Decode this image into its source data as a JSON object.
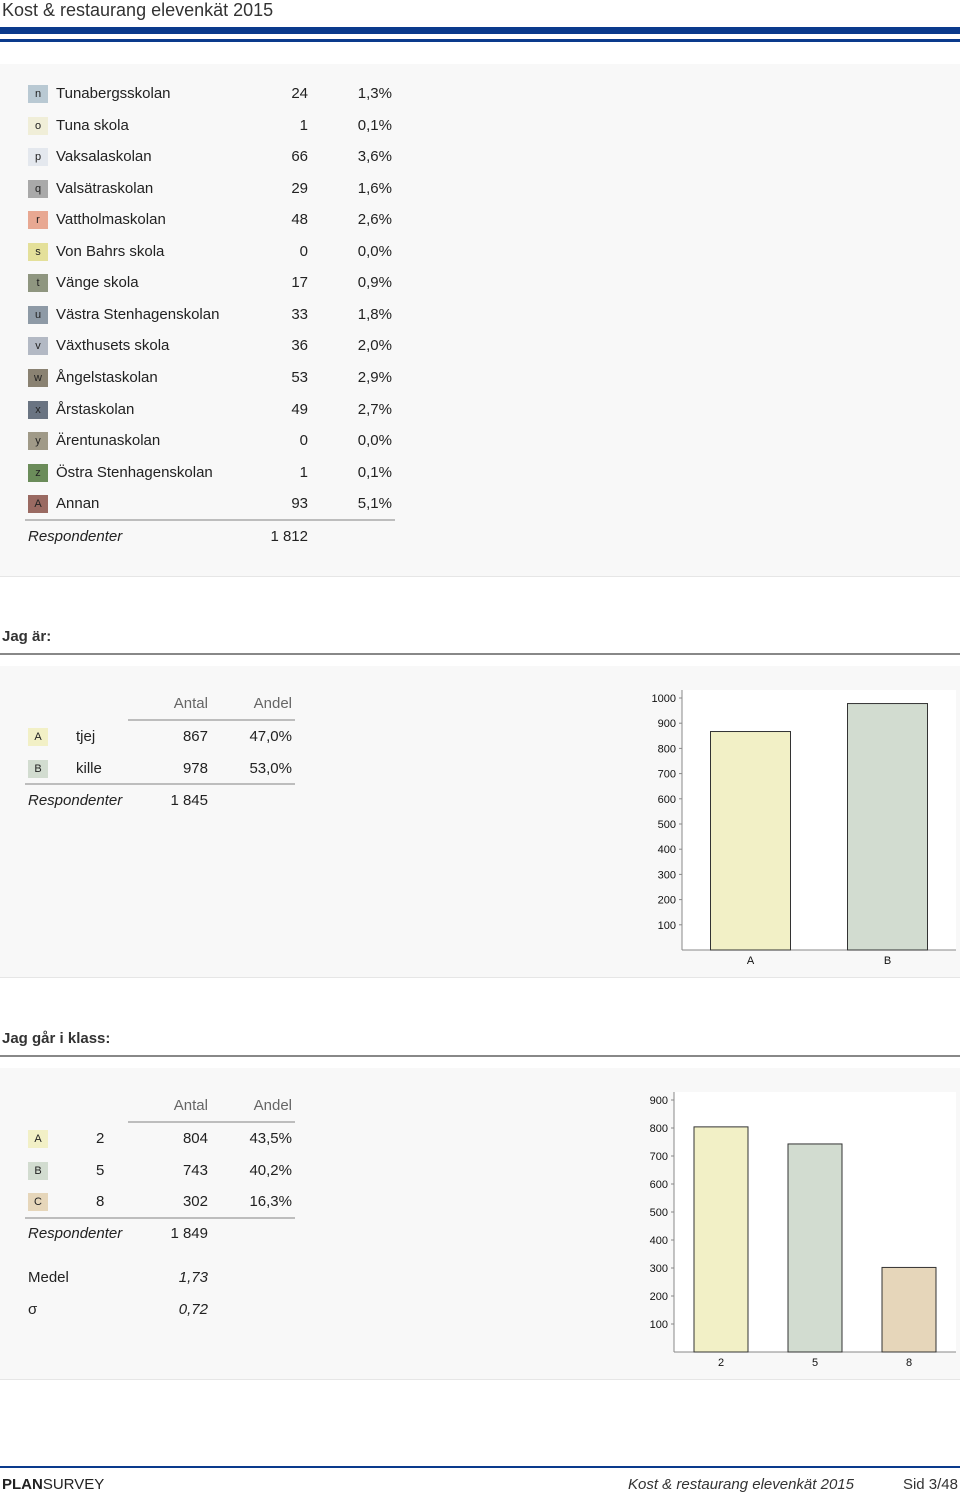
{
  "header": {
    "title": "Kost & restaurang elevenkät 2015"
  },
  "schools": {
    "rows": [
      {
        "code": "n",
        "name": "Tunabergsskolan",
        "count": "24",
        "pct": "1,3%",
        "color": "#b9c9d3"
      },
      {
        "code": "o",
        "name": "Tuna skola",
        "count": "1",
        "pct": "0,1%",
        "color": "#f0eed8"
      },
      {
        "code": "p",
        "name": "Vaksalaskolan",
        "count": "66",
        "pct": "3,6%",
        "color": "#e4e8ee"
      },
      {
        "code": "q",
        "name": "Valsätraskolan",
        "count": "29",
        "pct": "1,6%",
        "color": "#a9a9a9"
      },
      {
        "code": "r",
        "name": "Vattholmaskolan",
        "count": "48",
        "pct": "2,6%",
        "color": "#e8a892"
      },
      {
        "code": "s",
        "name": "Von Bahrs skola",
        "count": "0",
        "pct": "0,0%",
        "color": "#e4e09a"
      },
      {
        "code": "t",
        "name": "Vänge skola",
        "count": "17",
        "pct": "0,9%",
        "color": "#8f9680"
      },
      {
        "code": "u",
        "name": "Västra Stenhagenskolan",
        "count": "33",
        "pct": "1,8%",
        "color": "#8e9aa6"
      },
      {
        "code": "v",
        "name": "Växthusets skola",
        "count": "36",
        "pct": "2,0%",
        "color": "#b3b9c4"
      },
      {
        "code": "w",
        "name": "Ångelstaskolan",
        "count": "53",
        "pct": "2,9%",
        "color": "#8a8272"
      },
      {
        "code": "x",
        "name": "Årstaskolan",
        "count": "49",
        "pct": "2,7%",
        "color": "#6a7482"
      },
      {
        "code": "y",
        "name": "Ärentunaskolan",
        "count": "0",
        "pct": "0,0%",
        "color": "#a09a88"
      },
      {
        "code": "z",
        "name": "Östra Stenhagenskolan",
        "count": "1",
        "pct": "0,1%",
        "color": "#6b8c5a"
      },
      {
        "code": "A",
        "name": "Annan",
        "count": "93",
        "pct": "5,1%",
        "color": "#9a6a62"
      }
    ],
    "respondents_label": "Respondenter",
    "respondents": "1 812"
  },
  "gender": {
    "heading": "Jag är:",
    "col_count": "Antal",
    "col_share": "Andel",
    "rows": [
      {
        "code": "A",
        "label": "tjej",
        "count": "867",
        "pct": "47,0%",
        "color": "#f2f0c6"
      },
      {
        "code": "B",
        "label": "kille",
        "count": "978",
        "pct": "53,0%",
        "color": "#d2dcd0"
      }
    ],
    "respondents_label": "Respondenter",
    "respondents": "1 845"
  },
  "grade": {
    "heading": "Jag går i klass:",
    "col_count": "Antal",
    "col_share": "Andel",
    "rows": [
      {
        "code": "A",
        "label": "2",
        "count": "804",
        "pct": "43,5%",
        "color": "#f2f0c6"
      },
      {
        "code": "B",
        "label": "5",
        "count": "743",
        "pct": "40,2%",
        "color": "#d2dcd0"
      },
      {
        "code": "C",
        "label": "8",
        "count": "302",
        "pct": "16,3%",
        "color": "#e6d6ba"
      }
    ],
    "respondents_label": "Respondenter",
    "respondents": "1 849",
    "mean_label": "Medel",
    "mean": "1,73",
    "sd_label": "σ",
    "sd": "0,72"
  },
  "chart_data": [
    {
      "type": "bar",
      "categories": [
        "A",
        "B"
      ],
      "values": [
        867,
        978
      ],
      "ylim": [
        0,
        1000
      ],
      "yticks": [
        100,
        200,
        300,
        400,
        500,
        600,
        700,
        800,
        900,
        1000
      ],
      "colors": [
        "#f2f0c6",
        "#d2dcd0"
      ]
    },
    {
      "type": "bar",
      "categories": [
        "2",
        "5",
        "8"
      ],
      "values": [
        804,
        743,
        302
      ],
      "ylim": [
        0,
        900
      ],
      "yticks": [
        100,
        200,
        300,
        400,
        500,
        600,
        700,
        800,
        900
      ],
      "colors": [
        "#f2f0c6",
        "#d2dcd0",
        "#e6d6ba"
      ]
    }
  ],
  "footer": {
    "brand_bold": "PLAN",
    "brand_rest": "SURVEY",
    "report": "Kost & restaurang elevenkät 2015",
    "page": "Sid 3/48"
  }
}
